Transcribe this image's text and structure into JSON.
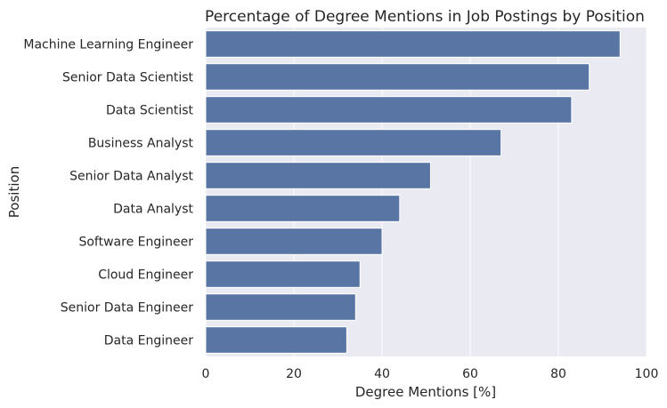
{
  "chart_data": {
    "type": "bar",
    "orientation": "horizontal",
    "title": "Percentage of Degree Mentions in Job Postings by Position",
    "xlabel": "Degree Mentions [%]",
    "ylabel": "Position",
    "xlim": [
      0,
      100
    ],
    "xticks": [
      0,
      20,
      40,
      60,
      80,
      100
    ],
    "grid": true,
    "bar_color": "#5875a4",
    "background_color": "#eaeaf2",
    "categories": [
      "Machine Learning Engineer",
      "Senior Data Scientist",
      "Data Scientist",
      "Business Analyst",
      "Senior Data Analyst",
      "Data Analyst",
      "Software Engineer",
      "Cloud Engineer",
      "Senior Data Engineer",
      "Data Engineer"
    ],
    "values": [
      94,
      87,
      83,
      67,
      51,
      44,
      40,
      35,
      34,
      32
    ]
  }
}
